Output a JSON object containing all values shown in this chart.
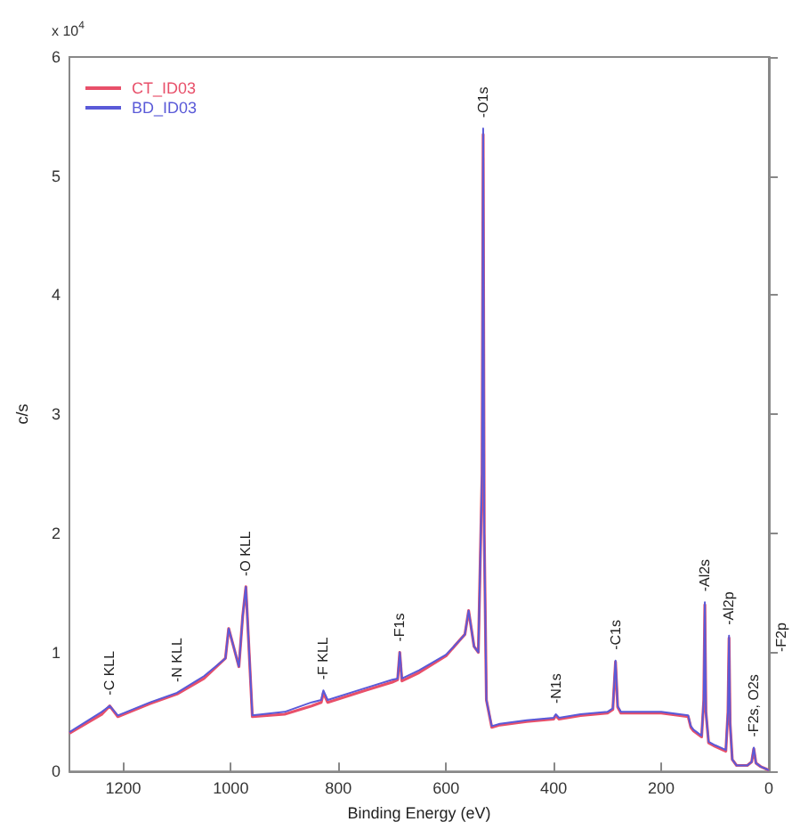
{
  "chart_data": {
    "type": "line",
    "xlabel": "Binding Energy (eV)",
    "ylabel": "c/s",
    "annotations": [
      "x 10$^{4}$",
      {
        "text": "-C KLL",
        "x": 1225,
        "y": 0.55
      },
      {
        "text": "-N KLL",
        "x": 1100,
        "y": 0.66
      },
      {
        "text": "-O KLL",
        "x": 972,
        "y": 1.55
      },
      {
        "text": "-F KLL",
        "x": 828,
        "y": 0.68
      },
      {
        "text": "-F1s",
        "x": 686,
        "y": 1.0
      },
      {
        "text": "-O1s",
        "x": 531,
        "y": 5.4
      },
      {
        "text": "-N1s",
        "x": 396,
        "y": 0.48
      },
      {
        "text": "-C1s",
        "x": 285,
        "y": 0.93
      },
      {
        "text": "-Al2s",
        "x": 119,
        "y": 1.42
      },
      {
        "text": "-Al2p",
        "x": 74,
        "y": 1.14
      },
      {
        "text": "-F2s, O2s",
        "x": 28,
        "y": 0.2
      },
      "-F2p"
    ],
    "x": [
      1300,
      1240,
      1225,
      1210,
      1150,
      1100,
      1050,
      1010,
      1004,
      995,
      985,
      978,
      972,
      960,
      900,
      850,
      832,
      828,
      820,
      750,
      700,
      690,
      686,
      682,
      650,
      600,
      575,
      565,
      558,
      548,
      540,
      533,
      531,
      529,
      525,
      515,
      500,
      450,
      400,
      396,
      390,
      350,
      300,
      290,
      285,
      281,
      275,
      250,
      200,
      150,
      145,
      140,
      125,
      121,
      119,
      117,
      112,
      100,
      90,
      80,
      76,
      74,
      72,
      68,
      60,
      40,
      32,
      28,
      24,
      15,
      5,
      0
    ],
    "series": [
      {
        "name": "CT_ID03",
        "color": "#e8506a",
        "values": [
          0.32,
          0.48,
          0.55,
          0.46,
          0.57,
          0.65,
          0.78,
          0.95,
          1.2,
          1.05,
          0.88,
          1.3,
          1.55,
          0.46,
          0.48,
          0.55,
          0.58,
          0.66,
          0.58,
          0.68,
          0.75,
          0.77,
          1.0,
          0.76,
          0.83,
          0.97,
          1.1,
          1.15,
          1.35,
          1.05,
          1.0,
          2.5,
          5.35,
          2.0,
          0.6,
          0.37,
          0.39,
          0.42,
          0.44,
          0.47,
          0.44,
          0.47,
          0.49,
          0.52,
          0.92,
          0.54,
          0.49,
          0.49,
          0.49,
          0.46,
          0.37,
          0.34,
          0.29,
          0.6,
          1.4,
          0.5,
          0.24,
          0.21,
          0.19,
          0.17,
          0.5,
          1.12,
          0.4,
          0.1,
          0.05,
          0.05,
          0.08,
          0.19,
          0.07,
          0.04,
          0.02,
          0.01
        ]
      },
      {
        "name": "BD_ID03",
        "color": "#5a5ad8",
        "values": [
          0.33,
          0.5,
          0.55,
          0.47,
          0.58,
          0.66,
          0.8,
          0.95,
          1.2,
          1.05,
          0.88,
          1.3,
          1.55,
          0.47,
          0.5,
          0.58,
          0.6,
          0.68,
          0.6,
          0.7,
          0.77,
          0.78,
          1.0,
          0.78,
          0.85,
          0.98,
          1.1,
          1.15,
          1.35,
          1.05,
          1.0,
          2.5,
          5.4,
          2.0,
          0.6,
          0.38,
          0.4,
          0.43,
          0.45,
          0.48,
          0.45,
          0.48,
          0.5,
          0.53,
          0.93,
          0.55,
          0.5,
          0.5,
          0.5,
          0.47,
          0.38,
          0.35,
          0.3,
          0.6,
          1.42,
          0.5,
          0.25,
          0.22,
          0.2,
          0.18,
          0.5,
          1.14,
          0.4,
          0.1,
          0.05,
          0.05,
          0.08,
          0.2,
          0.07,
          0.04,
          0.02,
          0.01
        ]
      }
    ],
    "xlim": [
      1300,
      0
    ],
    "xticks": [
      1200,
      1000,
      800,
      600,
      400,
      200,
      0
    ],
    "ylim": [
      0,
      6
    ],
    "yticks": [
      0,
      1,
      2,
      3,
      4,
      5,
      6
    ],
    "grid": false,
    "legend": "top left",
    "marker": "none",
    "line_style": "solid"
  }
}
